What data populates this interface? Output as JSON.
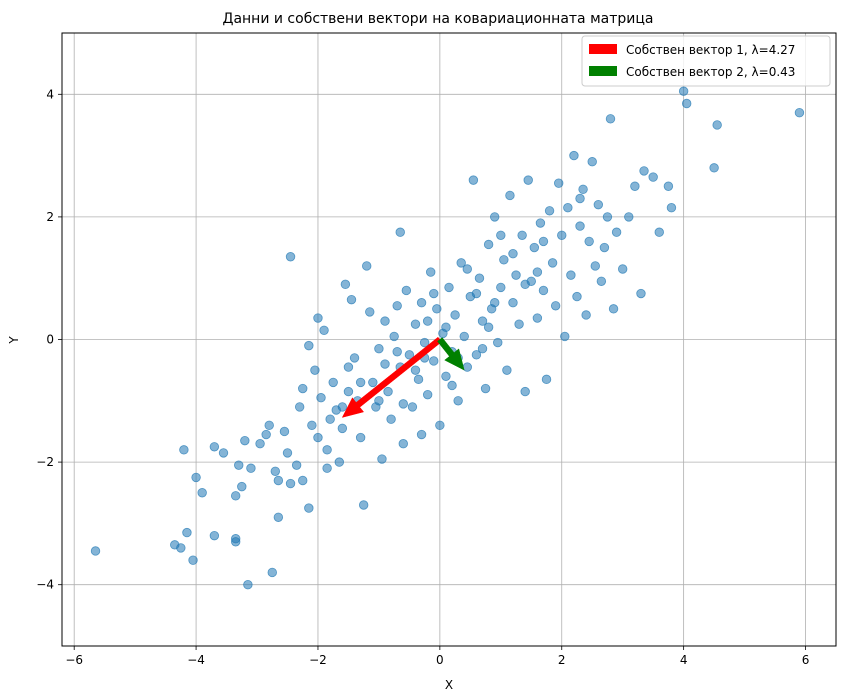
{
  "chart_data": {
    "type": "scatter",
    "title": "Данни и собствени вектори на ковариационната матрица",
    "xlabel": "X",
    "ylabel": "Y",
    "xlim": [
      -6.2,
      6.5
    ],
    "ylim": [
      -5,
      5
    ],
    "xticks": [
      -6,
      -4,
      -2,
      0,
      2,
      4,
      6
    ],
    "yticks": [
      -4,
      -2,
      0,
      2,
      4
    ],
    "grid": true,
    "legend_position": "top-right",
    "colors": {
      "points": "#1f77b4",
      "vector1": "#ff0000",
      "vector2": "#008000"
    },
    "series": [
      {
        "values": [
          [
            -5.65,
            -3.45
          ],
          [
            -4.35,
            -3.35
          ],
          [
            -4.25,
            -3.4
          ],
          [
            -4.15,
            -3.15
          ],
          [
            -4.05,
            -3.6
          ],
          [
            -4.2,
            -1.8
          ],
          [
            -4.0,
            -2.25
          ],
          [
            -3.9,
            -2.5
          ],
          [
            -3.7,
            -1.75
          ],
          [
            -3.7,
            -3.2
          ],
          [
            -3.55,
            -1.85
          ],
          [
            -3.35,
            -3.25
          ],
          [
            -3.35,
            -3.3
          ],
          [
            -3.3,
            -2.05
          ],
          [
            -3.35,
            -2.55
          ],
          [
            -3.2,
            -1.65
          ],
          [
            -3.25,
            -2.4
          ],
          [
            -3.1,
            -2.1
          ],
          [
            -3.15,
            -4.0
          ],
          [
            -2.75,
            -3.8
          ],
          [
            -2.95,
            -1.7
          ],
          [
            -2.85,
            -1.55
          ],
          [
            -2.8,
            -1.4
          ],
          [
            -2.7,
            -2.15
          ],
          [
            -2.65,
            -2.3
          ],
          [
            -2.65,
            -2.9
          ],
          [
            -2.55,
            -1.5
          ],
          [
            -2.45,
            -2.35
          ],
          [
            -2.5,
            -1.85
          ],
          [
            -2.45,
            1.35
          ],
          [
            -2.35,
            -2.05
          ],
          [
            -2.3,
            -1.1
          ],
          [
            -2.25,
            -0.8
          ],
          [
            -2.25,
            -2.3
          ],
          [
            -2.15,
            -0.1
          ],
          [
            -2.15,
            -2.75
          ],
          [
            -2.1,
            -1.4
          ],
          [
            -2.05,
            -0.5
          ],
          [
            -2.0,
            0.35
          ],
          [
            -1.95,
            -0.95
          ],
          [
            -1.9,
            0.15
          ],
          [
            -1.85,
            -1.8
          ],
          [
            -1.85,
            -2.1
          ],
          [
            -1.75,
            -0.7
          ],
          [
            -1.7,
            -1.15
          ],
          [
            -1.65,
            -2.0
          ],
          [
            -1.6,
            -1.45
          ],
          [
            -1.55,
            0.9
          ],
          [
            -1.5,
            -0.45
          ],
          [
            -1.45,
            0.65
          ],
          [
            -1.4,
            -0.3
          ],
          [
            -1.35,
            -1.0
          ],
          [
            -1.3,
            -1.6
          ],
          [
            -1.25,
            -2.7
          ],
          [
            -1.2,
            1.2
          ],
          [
            -1.15,
            0.45
          ],
          [
            -1.1,
            -0.7
          ],
          [
            -1.05,
            -1.1
          ],
          [
            -1.0,
            -0.15
          ],
          [
            -0.95,
            -1.95
          ],
          [
            -0.9,
            0.3
          ],
          [
            -0.85,
            -0.85
          ],
          [
            -0.8,
            -1.3
          ],
          [
            -0.75,
            0.05
          ],
          [
            -0.7,
            0.55
          ],
          [
            -0.65,
            -0.45
          ],
          [
            -0.65,
            1.75
          ],
          [
            -0.6,
            -1.7
          ],
          [
            -0.55,
            0.8
          ],
          [
            -0.5,
            -0.25
          ],
          [
            -0.45,
            -1.1
          ],
          [
            -0.4,
            0.25
          ],
          [
            -0.35,
            -0.65
          ],
          [
            -0.3,
            0.6
          ],
          [
            -0.3,
            -1.55
          ],
          [
            -0.25,
            -0.05
          ],
          [
            -0.2,
            -0.9
          ],
          [
            -0.15,
            1.1
          ],
          [
            -0.1,
            -0.35
          ],
          [
            -0.05,
            0.5
          ],
          [
            0.0,
            -1.4
          ],
          [
            0.05,
            0.1
          ],
          [
            0.1,
            -0.6
          ],
          [
            0.15,
            0.85
          ],
          [
            0.2,
            -0.2
          ],
          [
            0.25,
            0.4
          ],
          [
            0.3,
            -1.0
          ],
          [
            0.35,
            1.25
          ],
          [
            0.4,
            0.05
          ],
          [
            0.45,
            -0.45
          ],
          [
            0.5,
            0.7
          ],
          [
            0.55,
            2.6
          ],
          [
            0.6,
            -0.25
          ],
          [
            0.65,
            1.0
          ],
          [
            0.7,
            0.3
          ],
          [
            0.75,
            -0.8
          ],
          [
            0.8,
            1.55
          ],
          [
            0.85,
            0.5
          ],
          [
            0.9,
            2.0
          ],
          [
            0.95,
            -0.05
          ],
          [
            1.0,
            0.85
          ],
          [
            1.05,
            1.3
          ],
          [
            1.1,
            -0.5
          ],
          [
            1.15,
            2.35
          ],
          [
            1.2,
            0.6
          ],
          [
            1.25,
            1.05
          ],
          [
            1.3,
            0.25
          ],
          [
            1.35,
            1.7
          ],
          [
            1.4,
            -0.85
          ],
          [
            1.45,
            2.6
          ],
          [
            1.5,
            0.95
          ],
          [
            1.55,
            1.5
          ],
          [
            1.6,
            0.35
          ],
          [
            1.65,
            1.9
          ],
          [
            1.7,
            0.8
          ],
          [
            1.75,
            -0.65
          ],
          [
            1.8,
            2.1
          ],
          [
            1.85,
            1.25
          ],
          [
            1.9,
            0.55
          ],
          [
            1.95,
            2.55
          ],
          [
            2.0,
            1.7
          ],
          [
            2.05,
            0.05
          ],
          [
            2.1,
            2.15
          ],
          [
            2.15,
            1.05
          ],
          [
            2.2,
            3.0
          ],
          [
            2.25,
            0.7
          ],
          [
            2.3,
            1.85
          ],
          [
            2.35,
            2.45
          ],
          [
            2.4,
            0.4
          ],
          [
            2.45,
            1.6
          ],
          [
            2.5,
            2.9
          ],
          [
            2.55,
            1.2
          ],
          [
            2.6,
            2.2
          ],
          [
            2.65,
            0.95
          ],
          [
            2.7,
            1.5
          ],
          [
            2.75,
            2.0
          ],
          [
            2.8,
            3.6
          ],
          [
            2.85,
            0.5
          ],
          [
            2.9,
            1.75
          ],
          [
            3.0,
            1.15
          ],
          [
            3.1,
            2.0
          ],
          [
            3.2,
            2.5
          ],
          [
            3.3,
            0.75
          ],
          [
            3.35,
            2.75
          ],
          [
            3.5,
            2.65
          ],
          [
            3.6,
            1.75
          ],
          [
            3.75,
            2.5
          ],
          [
            3.8,
            2.15
          ],
          [
            4.0,
            4.05
          ],
          [
            4.05,
            3.85
          ],
          [
            4.5,
            2.8
          ],
          [
            4.55,
            3.5
          ],
          [
            5.9,
            3.7
          ],
          [
            -1.5,
            -0.85
          ],
          [
            -0.7,
            -0.2
          ],
          [
            0.6,
            0.75
          ],
          [
            1.2,
            1.4
          ],
          [
            -0.2,
            0.3
          ],
          [
            0.3,
            -0.3
          ],
          [
            -1.0,
            -1.0
          ],
          [
            0.9,
            0.6
          ],
          [
            -1.8,
            -1.3
          ],
          [
            1.7,
            1.6
          ],
          [
            -0.4,
            -0.5
          ],
          [
            0.1,
            0.2
          ],
          [
            2.3,
            2.3
          ],
          [
            -2.0,
            -1.6
          ],
          [
            0.7,
            -0.15
          ],
          [
            -0.9,
            -0.4
          ],
          [
            1.4,
            0.9
          ],
          [
            -0.1,
            0.75
          ],
          [
            0.45,
            1.15
          ],
          [
            -1.3,
            -0.7
          ],
          [
            1.0,
            1.7
          ],
          [
            -0.6,
            -1.05
          ],
          [
            0.2,
            -0.75
          ],
          [
            1.6,
            1.1
          ],
          [
            -1.6,
            -1.1
          ],
          [
            0.8,
            0.2
          ],
          [
            -0.25,
            -0.3
          ]
        ]
      }
    ],
    "vectors": [
      {
        "label": "Собствен вектор 1, λ=4.27",
        "dx": -1.6,
        "dy": -1.27,
        "color": "#ff0000"
      },
      {
        "label": "Собствен вектор 2, λ=0.43",
        "dx": 0.4,
        "dy": -0.5,
        "color": "#008000"
      }
    ]
  }
}
